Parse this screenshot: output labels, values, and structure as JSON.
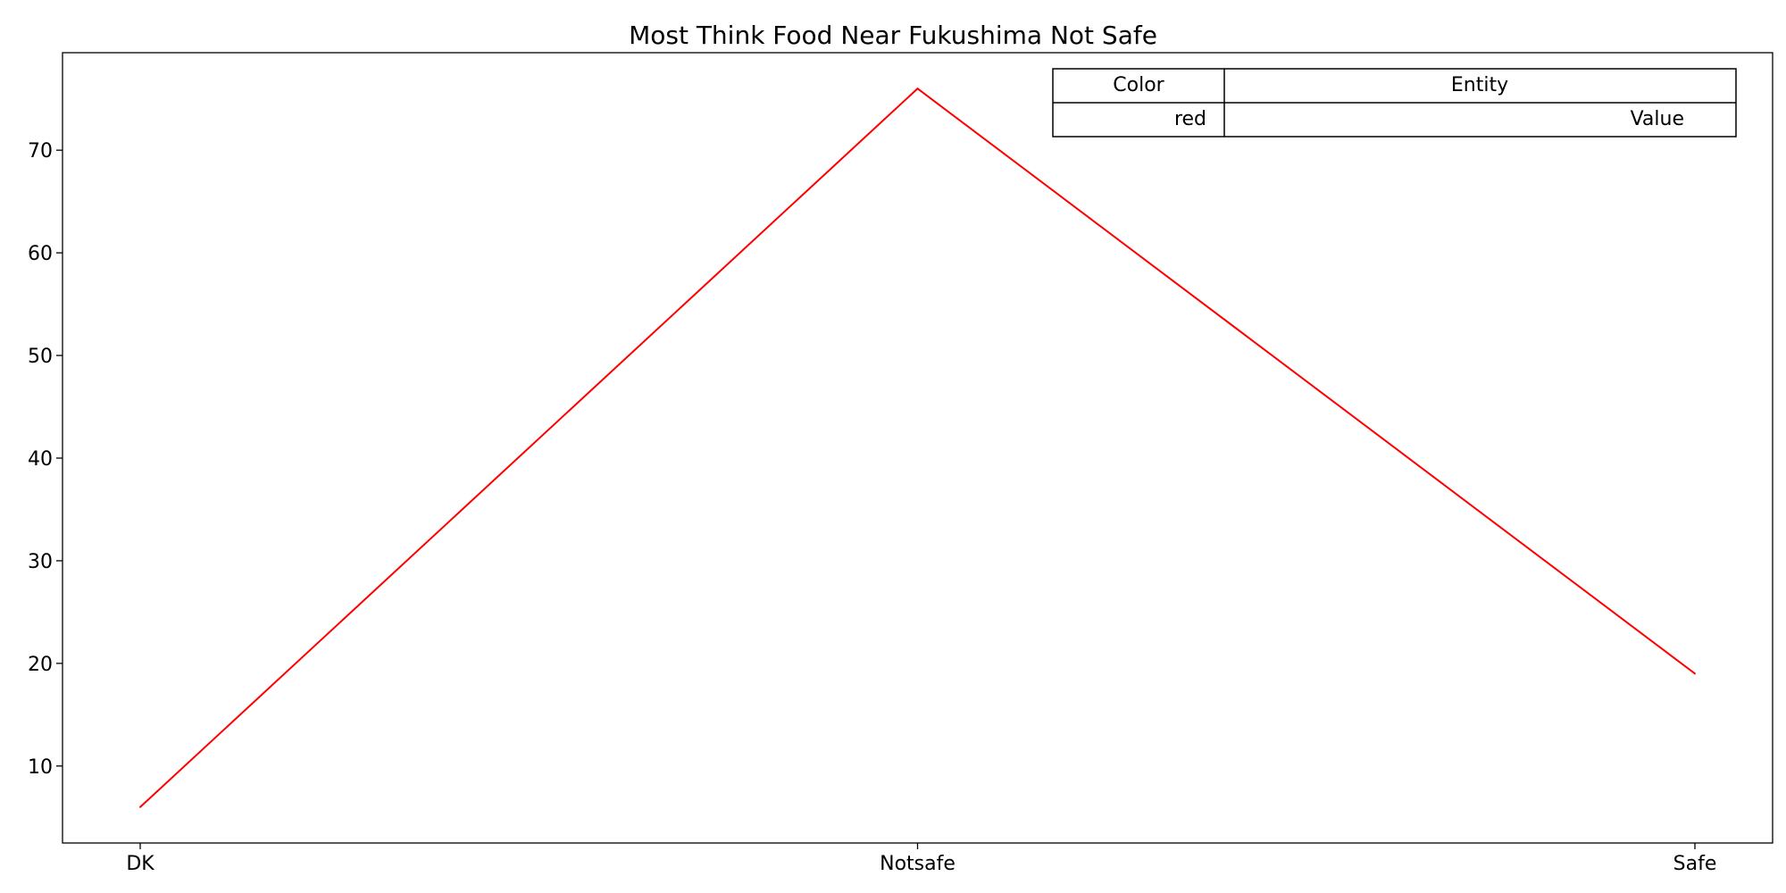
{
  "chart_data": {
    "type": "line",
    "title": "Most Think Food Near Fukushima Not Safe",
    "xlabel": "",
    "ylabel": "",
    "categories": [
      "DK",
      "Notsafe",
      "Safe"
    ],
    "series": [
      {
        "values": [
          6,
          76,
          19
        ],
        "color": "#ff0000"
      }
    ],
    "ylim": [
      2.5,
      79.5
    ],
    "yticks": [
      10,
      20,
      30,
      40,
      50,
      60,
      70
    ],
    "grid": false,
    "legend_table": {
      "headers": [
        "Color",
        "Entity"
      ],
      "rows": [
        [
          "red",
          "Value"
        ]
      ],
      "placement": "top-right"
    }
  }
}
